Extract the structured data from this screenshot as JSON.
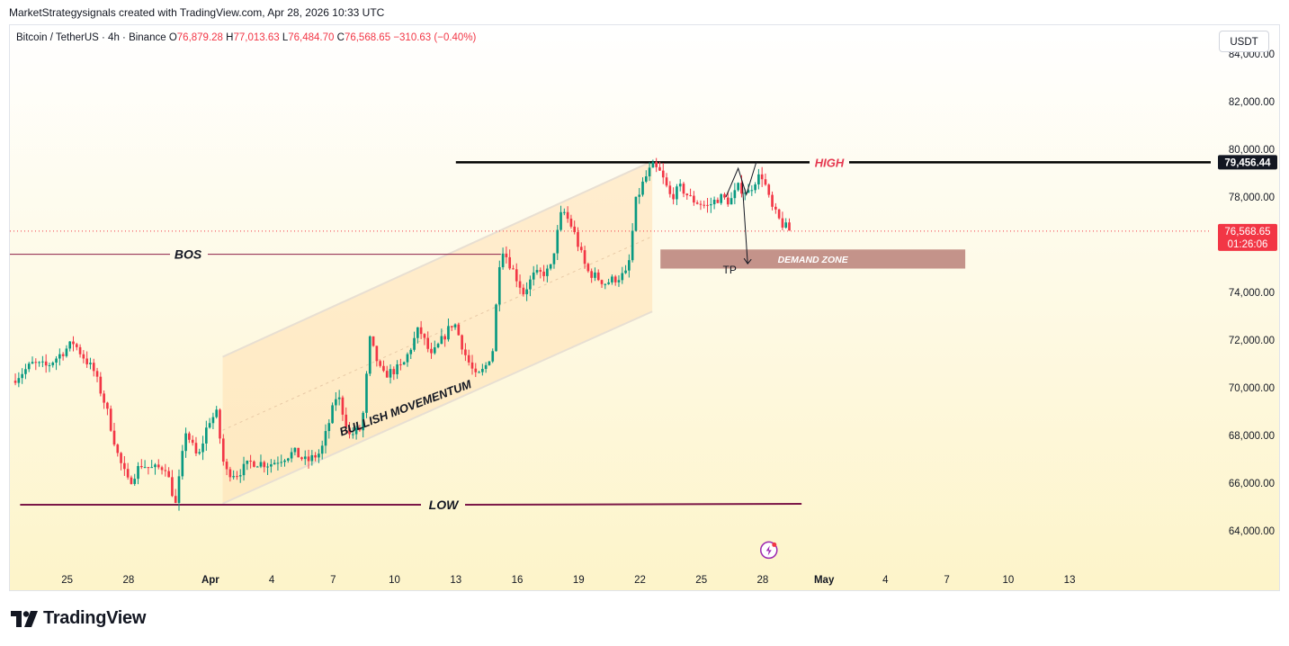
{
  "header": {
    "attribution": "MarketStrategysignals created with TradingView.com, Apr 28, 2026 10:33 UTC"
  },
  "legend": {
    "symbol": "Bitcoin / TetherUS · 4h · Binance",
    "o_label": "O",
    "o_value": "76,879.28",
    "h_label": "H",
    "h_value": "77,013.63",
    "l_label": "L",
    "l_value": "76,484.70",
    "c_label": "C",
    "c_value": "76,568.65",
    "change": "−310.63 (−0.40%)"
  },
  "currency_button": "USDT",
  "brand": "TradingView",
  "colors": {
    "up": "#089981",
    "down": "#f23645",
    "high_label": "#e53950",
    "zone": "#c4938a",
    "channel": "#ffe0b2"
  },
  "chart_data": {
    "type": "candlestick",
    "timeframe": "4h",
    "y_axis": {
      "ylim": [
        62500,
        85200
      ],
      "ticks": [
        {
          "v": 84000,
          "label": "84,000.00"
        },
        {
          "v": 82000,
          "label": "82,000.00"
        },
        {
          "v": 80000,
          "label": "80,000.00"
        },
        {
          "v": 78000,
          "label": "78,000.00"
        },
        {
          "v": 74000,
          "label": "74,000.00"
        },
        {
          "v": 72000,
          "label": "72,000.00"
        },
        {
          "v": 70000,
          "label": "70,000.00"
        },
        {
          "v": 68000,
          "label": "68,000.00"
        },
        {
          "v": 66000,
          "label": "66,000.00"
        },
        {
          "v": 64000,
          "label": "64,000.00"
        }
      ]
    },
    "x_axis": {
      "xlim": [
        -2.8,
        55.9
      ],
      "unit": "days from Mar 25",
      "ticks": [
        {
          "d": 0,
          "label": "25"
        },
        {
          "d": 3,
          "label": "28"
        },
        {
          "d": 7,
          "label": "Apr",
          "bold": true
        },
        {
          "d": 10,
          "label": "4"
        },
        {
          "d": 13,
          "label": "7"
        },
        {
          "d": 16,
          "label": "10"
        },
        {
          "d": 19,
          "label": "13"
        },
        {
          "d": 22,
          "label": "16"
        },
        {
          "d": 25,
          "label": "19"
        },
        {
          "d": 28,
          "label": "22"
        },
        {
          "d": 31,
          "label": "25"
        },
        {
          "d": 34,
          "label": "28"
        },
        {
          "d": 37,
          "label": "May",
          "bold": true
        },
        {
          "d": 40,
          "label": "4"
        },
        {
          "d": 43,
          "label": "7"
        },
        {
          "d": 46,
          "label": "10"
        },
        {
          "d": 49,
          "label": "13"
        }
      ]
    },
    "price_tags": [
      {
        "name": "high-level",
        "value": 79456.44,
        "label": "79,456.44",
        "style": "dark"
      },
      {
        "name": "last-price",
        "value": 76568.65,
        "label": "76,568.65",
        "sub": "01:26:06",
        "style": "red"
      }
    ],
    "waypoints": [
      [
        -2.7,
        70300
      ],
      [
        -1.7,
        71000
      ],
      [
        -1.0,
        70900
      ],
      [
        0.3,
        71900
      ],
      [
        1.3,
        70700
      ],
      [
        1.9,
        69200
      ],
      [
        2.5,
        67100
      ],
      [
        3.0,
        66000
      ],
      [
        3.6,
        66800
      ],
      [
        4.2,
        66600
      ],
      [
        4.8,
        66700
      ],
      [
        5.3,
        65100
      ],
      [
        5.8,
        68200
      ],
      [
        6.4,
        67000
      ],
      [
        6.9,
        68600
      ],
      [
        7.3,
        68900
      ],
      [
        7.7,
        66500
      ],
      [
        8.3,
        66400
      ],
      [
        9.0,
        66900
      ],
      [
        9.9,
        66800
      ],
      [
        10.6,
        67100
      ],
      [
        11.1,
        67300
      ],
      [
        11.7,
        66900
      ],
      [
        12.4,
        67300
      ],
      [
        13.2,
        69800
      ],
      [
        13.8,
        68000
      ],
      [
        14.4,
        68300
      ],
      [
        14.8,
        72000
      ],
      [
        15.4,
        70500
      ],
      [
        16.4,
        70900
      ],
      [
        17.2,
        72500
      ],
      [
        17.8,
        71300
      ],
      [
        18.9,
        72800
      ],
      [
        19.5,
        71300
      ],
      [
        20.0,
        70400
      ],
      [
        20.4,
        70800
      ],
      [
        20.8,
        71600
      ],
      [
        21.2,
        76000
      ],
      [
        22.3,
        74000
      ],
      [
        22.8,
        74700
      ],
      [
        23.6,
        74900
      ],
      [
        24.2,
        77500
      ],
      [
        24.7,
        76700
      ],
      [
        25.4,
        74900
      ],
      [
        26.3,
        74400
      ],
      [
        27.4,
        74800
      ],
      [
        27.8,
        77800
      ],
      [
        28.2,
        78700
      ],
      [
        28.6,
        79300
      ],
      [
        29.0,
        79000
      ],
      [
        29.5,
        78000
      ],
      [
        30.0,
        78400
      ],
      [
        30.5,
        77900
      ],
      [
        31.3,
        77600
      ],
      [
        31.9,
        78000
      ],
      [
        32.4,
        77800
      ],
      [
        32.8,
        78400
      ],
      [
        33.3,
        78200
      ],
      [
        33.7,
        78800
      ],
      [
        34.0,
        78900
      ],
      [
        34.4,
        77600
      ],
      [
        34.9,
        76900
      ],
      [
        35.3,
        76600
      ]
    ],
    "annotations": {
      "high": {
        "label": "HIGH",
        "price": 79456.44,
        "x_from": 19.0,
        "x_to": 55.9
      },
      "low": {
        "label": "LOW",
        "price": 65100,
        "x_from": -2.3,
        "x_to": 35.9
      },
      "bos": {
        "label": "BOS",
        "price": 75600,
        "x_from": -2.8,
        "x_to": 21.2
      },
      "channel": {
        "label": "BULLISH MOVEMENTUM",
        "lower": [
          [
            7.6,
            65150
          ],
          [
            28.6,
            73200
          ]
        ],
        "upper": [
          [
            7.6,
            71300
          ],
          [
            28.6,
            79500
          ]
        ]
      },
      "demand_zone": {
        "label": "DEMAND ZONE",
        "price_low": 75000,
        "price_high": 75800,
        "x_from": 29.0,
        "x_to": 43.9
      },
      "tp": {
        "label": "TP"
      }
    },
    "grid": false
  }
}
